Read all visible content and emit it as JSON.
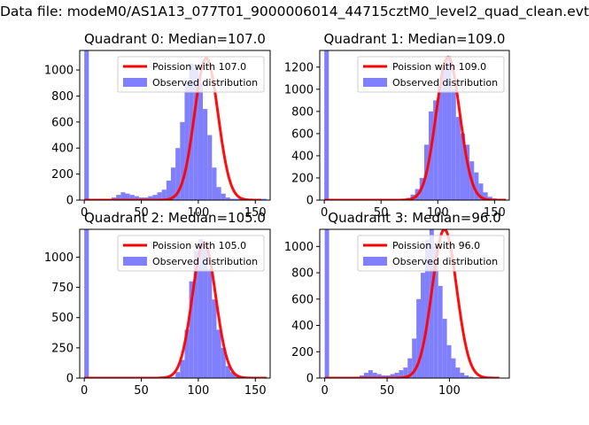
{
  "suptitle": "Data file: modeM0/AS1A13_077T01_9000006014_44715cztM0_level2_quad_clean.evt",
  "colors": {
    "poisson": "#ff0000",
    "observed": "#8080ff",
    "axis": "#000000"
  },
  "chart_data": [
    {
      "type": "bar",
      "title": "Quadrant 0: Median=107.0",
      "legend": {
        "placement": "top-right",
        "entries": [
          "Poission with 107.0",
          "Observed distribution"
        ]
      },
      "mean": 107.0,
      "amplitude": 1090,
      "xlim": [
        -4,
        163
      ],
      "ylim": [
        0,
        1150
      ],
      "xticks": [
        0,
        50,
        100,
        150
      ],
      "yticks": [
        0,
        200,
        400,
        600,
        800,
        1000
      ],
      "bins": {
        "start": 0,
        "width": 4
      },
      "values": [
        1150,
        10,
        10,
        10,
        10,
        10,
        20,
        40,
        60,
        50,
        40,
        30,
        20,
        20,
        30,
        40,
        60,
        80,
        150,
        250,
        400,
        600,
        900,
        1050,
        1020,
        900,
        700,
        500,
        250,
        100,
        50,
        20,
        10,
        10,
        10,
        10,
        10,
        10,
        10,
        10
      ],
      "curve": {
        "x_range": [
          0,
          155
        ]
      }
    },
    {
      "type": "bar",
      "title": "Quadrant 1: Median=109.0",
      "legend": {
        "placement": "top-right",
        "entries": [
          "Poission with 109.0",
          "Observed distribution"
        ]
      },
      "mean": 109.0,
      "amplitude": 1290,
      "xlim": [
        -4,
        163
      ],
      "ylim": [
        0,
        1350
      ],
      "xticks": [
        0,
        50,
        100,
        150
      ],
      "yticks": [
        0,
        200,
        400,
        600,
        800,
        1000,
        1200
      ],
      "bins": {
        "start": 0,
        "width": 4
      },
      "values": [
        1350,
        5,
        5,
        5,
        5,
        5,
        5,
        5,
        5,
        5,
        5,
        5,
        5,
        5,
        5,
        5,
        5,
        10,
        20,
        50,
        100,
        200,
        500,
        800,
        900,
        1100,
        1200,
        1300,
        1000,
        750,
        600,
        500,
        350,
        250,
        150,
        70,
        30,
        15,
        10,
        5
      ],
      "curve": {
        "x_range": [
          0,
          160
        ]
      }
    },
    {
      "type": "bar",
      "title": "Quadrant 2: Median=105.0",
      "legend": {
        "placement": "top-right",
        "entries": [
          "Poission with 105.0",
          "Observed distribution"
        ]
      },
      "mean": 105.0,
      "amplitude": 1120,
      "xlim": [
        -4,
        163
      ],
      "ylim": [
        0,
        1230
      ],
      "xticks": [
        0,
        50,
        100,
        150
      ],
      "yticks": [
        0,
        250,
        500,
        750,
        1000
      ],
      "bins": {
        "start": 0,
        "width": 4
      },
      "values": [
        1230,
        5,
        5,
        5,
        5,
        5,
        5,
        5,
        5,
        5,
        5,
        5,
        5,
        5,
        5,
        5,
        5,
        5,
        5,
        10,
        50,
        150,
        400,
        800,
        1050,
        1150,
        1100,
        900,
        650,
        400,
        250,
        100,
        50,
        20,
        10,
        5,
        5,
        5,
        5,
        5
      ],
      "curve": {
        "x_range": [
          0,
          160
        ]
      }
    },
    {
      "type": "bar",
      "title": "Quadrant 3: Median=96.0",
      "legend": {
        "placement": "top-right",
        "entries": [
          "Poission with 96.0",
          "Observed distribution"
        ]
      },
      "mean": 96.0,
      "amplitude": 1130,
      "xlim": [
        -4,
        148
      ],
      "ylim": [
        0,
        1130
      ],
      "xticks": [
        0,
        50,
        100
      ],
      "yticks": [
        0,
        200,
        400,
        600,
        800,
        1000
      ],
      "bins": {
        "start": 0,
        "width": 3.5
      },
      "values": [
        1130,
        5,
        5,
        5,
        5,
        5,
        5,
        10,
        20,
        40,
        60,
        40,
        30,
        20,
        20,
        30,
        40,
        60,
        80,
        150,
        300,
        600,
        800,
        1050,
        1130,
        1000,
        700,
        450,
        250,
        150,
        80,
        40,
        20,
        10,
        5,
        5,
        5,
        5,
        5,
        5
      ],
      "curve": {
        "x_range": [
          0,
          140
        ]
      }
    }
  ]
}
